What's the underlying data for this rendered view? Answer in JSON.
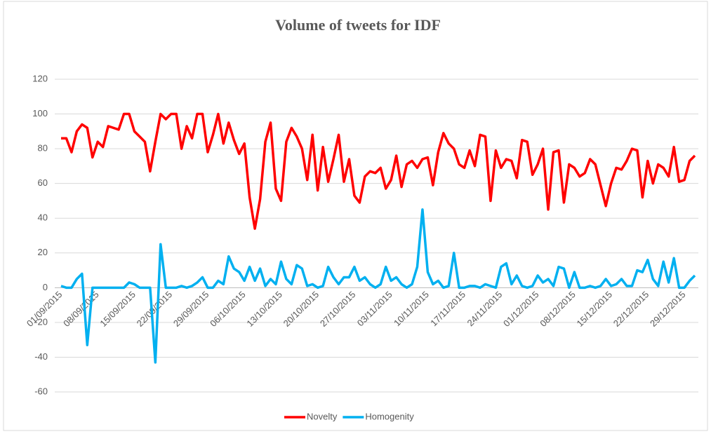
{
  "chart_data": {
    "type": "line",
    "title": "Volume of tweets for IDF",
    "categories": [
      "01/09/2015",
      null,
      null,
      null,
      null,
      null,
      null,
      "08/09/2015",
      null,
      null,
      null,
      null,
      null,
      null,
      "15/09/2015",
      null,
      null,
      null,
      null,
      null,
      null,
      "22/09/2015",
      null,
      null,
      null,
      null,
      null,
      null,
      "29/09/2015",
      null,
      null,
      null,
      null,
      null,
      null,
      "06/10/2015",
      null,
      null,
      null,
      null,
      null,
      null,
      "13/10/2015",
      null,
      null,
      null,
      null,
      null,
      null,
      "20/10/2015",
      null,
      null,
      null,
      null,
      null,
      null,
      "27/10/2015",
      null,
      null,
      null,
      null,
      null,
      null,
      "03/11/2015",
      null,
      null,
      null,
      null,
      null,
      null,
      "10/11/2015",
      null,
      null,
      null,
      null,
      null,
      null,
      "17/11/2015",
      null,
      null,
      null,
      null,
      null,
      null,
      "24/11/2015",
      null,
      null,
      null,
      null,
      null,
      null,
      "01/12/2015",
      null,
      null,
      null,
      null,
      null,
      null,
      "08/12/2015",
      null,
      null,
      null,
      null,
      null,
      null,
      "15/12/2015",
      null,
      null,
      null,
      null,
      null,
      null,
      "22/12/2015",
      null,
      null,
      null,
      null,
      null,
      null,
      "29/12/2015",
      null,
      null
    ],
    "series": [
      {
        "name": "Novelty",
        "color": "#ff0000",
        "values": [
          86,
          86,
          78,
          90,
          94,
          92,
          75,
          84,
          81,
          93,
          92,
          91,
          100,
          100,
          90,
          87,
          84,
          67,
          84,
          100,
          97,
          100,
          100,
          80,
          93,
          86,
          100,
          100,
          78,
          88,
          100,
          83,
          95,
          85,
          77,
          83,
          52,
          34,
          51,
          84,
          95,
          57,
          50,
          84,
          92,
          87,
          80,
          62,
          88,
          56,
          81,
          61,
          74,
          88,
          61,
          74,
          53,
          49,
          64,
          67,
          66,
          69,
          57,
          62,
          76,
          58,
          71,
          73,
          69,
          74,
          75,
          59,
          78,
          89,
          83,
          80,
          71,
          69,
          79,
          70,
          88,
          87,
          50,
          79,
          69,
          74,
          73,
          63,
          85,
          84,
          65,
          71,
          80,
          45,
          78,
          79,
          49,
          71,
          69,
          64,
          66,
          74,
          71,
          59,
          47,
          60,
          69,
          68,
          73,
          80,
          79,
          52,
          73,
          60,
          71,
          69,
          64,
          81,
          61,
          62,
          73,
          76
        ]
      },
      {
        "name": "Homogenity",
        "color": "#00b0f0",
        "values": [
          1,
          0,
          0,
          5,
          8,
          -33,
          0,
          0,
          0,
          0,
          0,
          0,
          0,
          3,
          2,
          0,
          0,
          0,
          -43,
          25,
          0,
          0,
          0,
          1,
          0,
          1,
          3,
          6,
          0,
          0,
          4,
          2,
          18,
          11,
          9,
          4,
          12,
          4,
          11,
          1,
          5,
          2,
          15,
          5,
          2,
          13,
          11,
          1,
          2,
          0,
          1,
          12,
          6,
          2,
          6,
          6,
          12,
          4,
          6,
          2,
          0,
          2,
          12,
          4,
          6,
          2,
          0,
          2,
          12,
          45,
          9,
          2,
          4,
          0,
          1,
          20,
          0,
          0,
          1,
          1,
          0,
          2,
          1,
          0,
          12,
          14,
          2,
          7,
          1,
          0,
          1,
          7,
          3,
          5,
          1,
          12,
          11,
          0,
          9,
          0,
          0,
          1,
          0,
          1,
          5,
          1,
          2,
          5,
          1,
          1,
          10,
          9,
          16,
          5,
          1,
          15,
          3,
          17,
          0,
          0,
          4,
          7
        ]
      }
    ],
    "ylim": [
      -60,
      120
    ],
    "yticks": [
      -60,
      -40,
      -20,
      0,
      20,
      40,
      60,
      80,
      100,
      120
    ],
    "grid": true,
    "legend": "bottom"
  }
}
